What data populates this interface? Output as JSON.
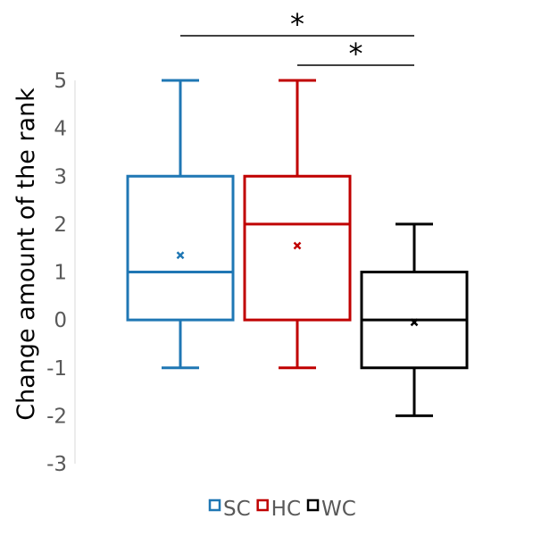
{
  "chart_data": {
    "type": "box",
    "title": "",
    "xlabel": "",
    "ylabel": "Change amount of the rank",
    "ylim": [
      -3,
      5
    ],
    "yticks": [
      5,
      4,
      3,
      2,
      1,
      0,
      -1,
      -2,
      -3
    ],
    "ytick_labels": [
      "5",
      "4",
      "3",
      "2",
      "1",
      "0",
      "-1",
      "-2",
      "-3"
    ],
    "grid": false,
    "legend_position": "bottom",
    "series": [
      {
        "name": "SC",
        "color": "#1f77b4",
        "whisker_low": -1,
        "q1": 0,
        "median": 1,
        "q3": 3,
        "whisker_high": 5,
        "mean": 1.35
      },
      {
        "name": "HC",
        "color": "#c00000",
        "whisker_low": -1,
        "q1": 0,
        "median": 2,
        "q3": 3,
        "whisker_high": 5,
        "mean": 1.55
      },
      {
        "name": "WC",
        "color": "#000000",
        "whisker_low": -2,
        "q1": -1,
        "median": 0,
        "q3": 1,
        "whisker_high": 2,
        "mean": -0.05
      }
    ],
    "significance": [
      {
        "from": "SC",
        "to": "WC",
        "label": "*"
      },
      {
        "from": "HC",
        "to": "WC",
        "label": "*"
      }
    ]
  }
}
